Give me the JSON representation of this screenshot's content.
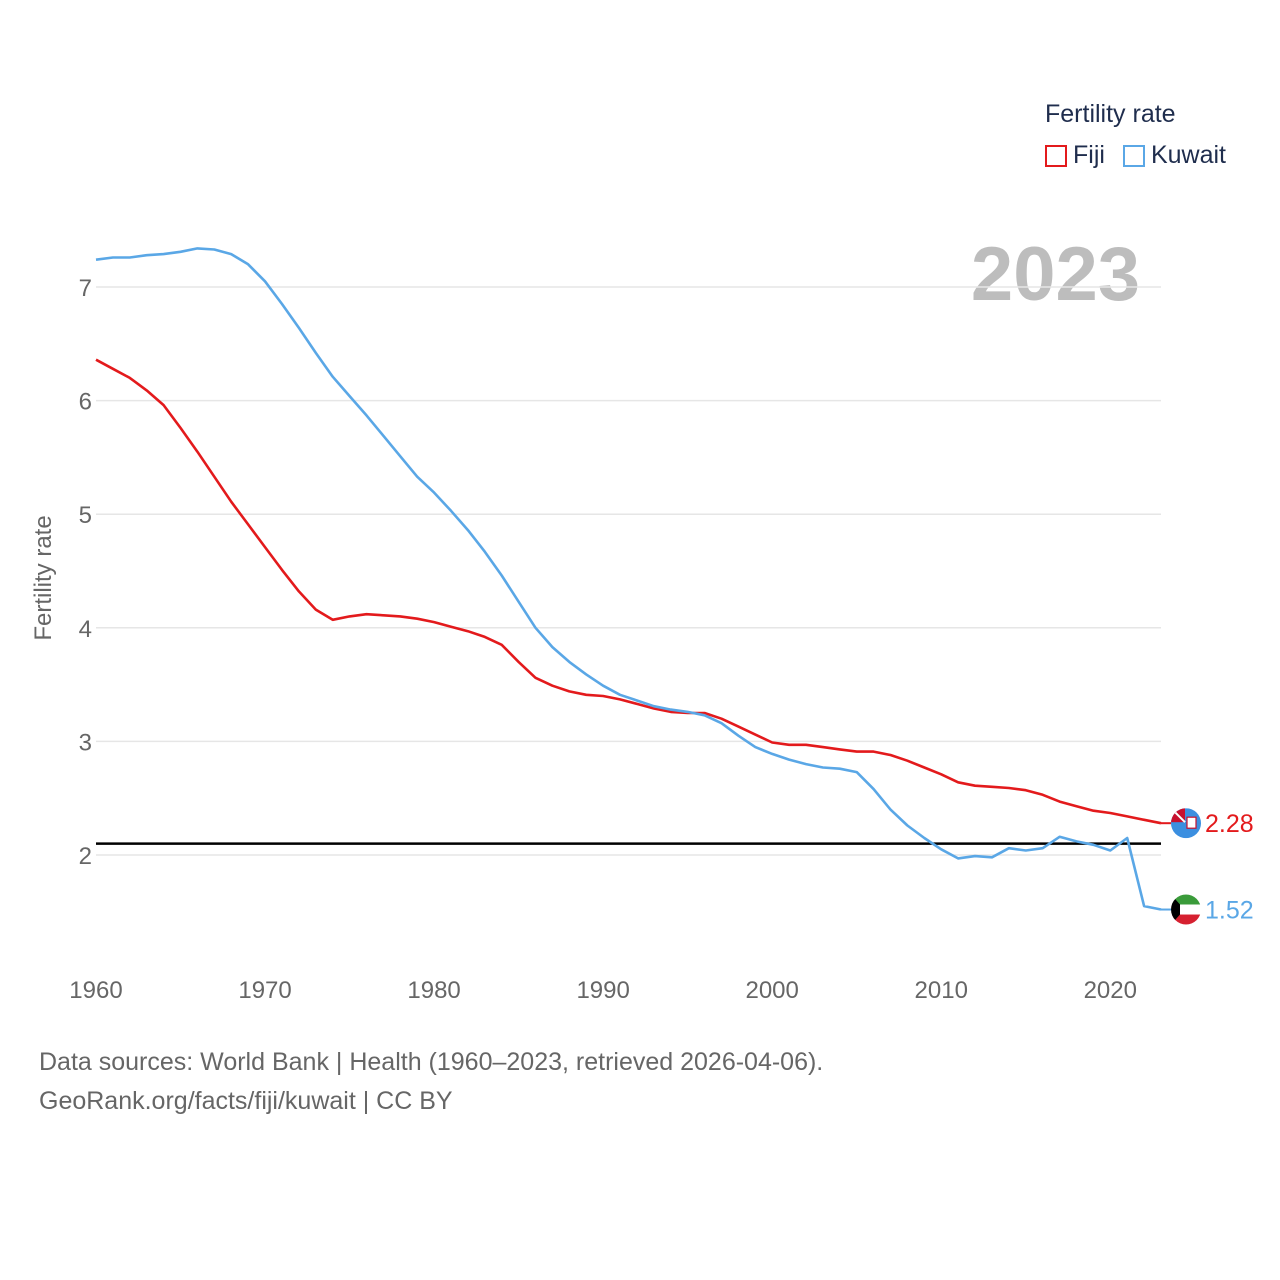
{
  "chart_data": {
    "type": "line",
    "title": "Fertility rate",
    "ylabel": "Fertility rate",
    "xlabel": "",
    "year_label": "2023",
    "xlim": [
      1960,
      2023
    ],
    "ylim": [
      1.0,
      7.6
    ],
    "x_ticks": [
      1960,
      1970,
      1980,
      1990,
      2000,
      2010,
      2020
    ],
    "y_ticks": [
      2,
      3,
      4,
      5,
      6,
      7
    ],
    "reference_line": 2.1,
    "grid": true,
    "legend_position": "top-right",
    "x": [
      1960,
      1961,
      1962,
      1963,
      1964,
      1965,
      1966,
      1967,
      1968,
      1969,
      1970,
      1971,
      1972,
      1973,
      1974,
      1975,
      1976,
      1977,
      1978,
      1979,
      1980,
      1981,
      1982,
      1983,
      1984,
      1985,
      1986,
      1987,
      1988,
      1989,
      1990,
      1991,
      1992,
      1993,
      1994,
      1995,
      1996,
      1997,
      1998,
      1999,
      2000,
      2001,
      2002,
      2003,
      2004,
      2005,
      2006,
      2007,
      2008,
      2009,
      2010,
      2011,
      2012,
      2013,
      2014,
      2015,
      2016,
      2017,
      2018,
      2019,
      2020,
      2021,
      2022,
      2023
    ],
    "series": [
      {
        "name": "Fiji",
        "color": "#e31a1c",
        "end_label": "2.28",
        "flag": "fiji-flag-icon",
        "values": [
          6.36,
          6.28,
          6.2,
          6.09,
          5.96,
          5.76,
          5.55,
          5.33,
          5.11,
          4.91,
          4.71,
          4.51,
          4.32,
          4.16,
          4.07,
          4.1,
          4.12,
          4.11,
          4.1,
          4.08,
          4.05,
          4.01,
          3.97,
          3.92,
          3.85,
          3.7,
          3.56,
          3.49,
          3.44,
          3.41,
          3.4,
          3.37,
          3.33,
          3.29,
          3.26,
          3.25,
          3.25,
          3.2,
          3.13,
          3.06,
          2.99,
          2.97,
          2.97,
          2.95,
          2.93,
          2.91,
          2.91,
          2.88,
          2.83,
          2.77,
          2.71,
          2.64,
          2.61,
          2.6,
          2.59,
          2.57,
          2.53,
          2.47,
          2.43,
          2.39,
          2.37,
          2.34,
          2.31,
          2.28
        ]
      },
      {
        "name": "Kuwait",
        "color": "#5aa7e6",
        "end_label": "1.52",
        "flag": "kuwait-flag-icon",
        "values": [
          7.24,
          7.26,
          7.26,
          7.28,
          7.29,
          7.31,
          7.34,
          7.33,
          7.29,
          7.2,
          7.05,
          6.85,
          6.64,
          6.42,
          6.21,
          6.04,
          5.87,
          5.69,
          5.51,
          5.33,
          5.19,
          5.03,
          4.86,
          4.67,
          4.46,
          4.23,
          4.0,
          3.83,
          3.7,
          3.59,
          3.49,
          3.41,
          3.36,
          3.31,
          3.28,
          3.26,
          3.23,
          3.16,
          3.05,
          2.95,
          2.89,
          2.84,
          2.8,
          2.77,
          2.76,
          2.73,
          2.58,
          2.4,
          2.26,
          2.15,
          2.05,
          1.97,
          1.99,
          1.98,
          2.06,
          2.04,
          2.06,
          2.16,
          2.12,
          2.09,
          2.04,
          2.15,
          1.55,
          1.52
        ]
      }
    ]
  },
  "footer": {
    "line1": "Data sources: World Bank | Health (1960–2023, retrieved 2026-04-06).",
    "line2": "GeoRank.org/facts/fiji/kuwait | CC BY"
  }
}
